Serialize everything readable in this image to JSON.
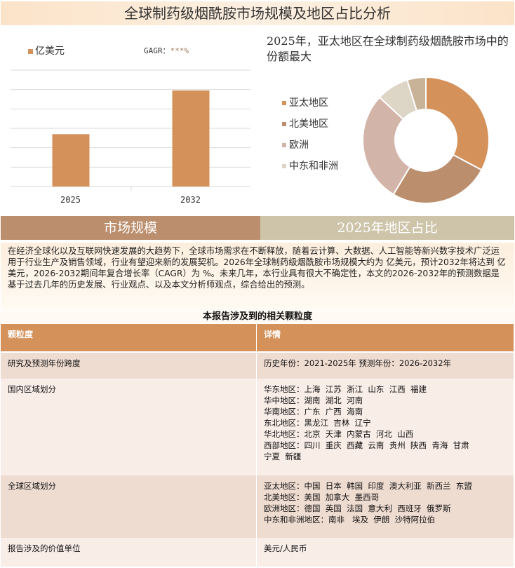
{
  "title": "全球制药级烟酰胺市场规模及地区占比分析",
  "bar_legend": "亿美元",
  "cagr_label": "GAGR：",
  "cagr_value": "***%",
  "pie_title": "2025年，亚太地区在全球制药级烟酰胺市场中的份额最大",
  "section_left": "市场规模",
  "section_right": "2025年地区占比",
  "paragraph": "在经济全球化以及互联网快速发展的大趋势下，全球市场需求在不断释放，随着云计算、大数据、人工智能等新兴数字技术广泛运用于行业生产及销售领域，行业有望迎来新的发展契机。2026年全球制药级烟酰胺市场规模大约为 亿美元，预计2032年将达到 亿美元，2026-2032期间年复合增长率（CAGR）为 %。未来几年，本行业具有很大不确定性，本文的2026-2032年的预测数据是基于过去几年的历史发展、行业观点、以及本文分析师观点，综合给出的预测。",
  "table": {
    "title": "本报告涉及到的相关颗粒度",
    "headers": [
      "颗粒度",
      "详情"
    ],
    "rows": [
      {
        "label": "研究及预测年份跨度",
        "lines": [
          "历史年份：2021-2025年 预测年份：2026-2032年"
        ]
      },
      {
        "label": "国内区域划分",
        "lines": [
          "华东地区：上海  江苏  浙江  山东  江西  福建",
          "华中地区：湖南  湖北  河南",
          "华南地区：广东  广西  海南",
          "东北地区：黑龙江  吉林  辽宁",
          "华北地区：北京  天津  内蒙古  河北  山西",
          "西部地区：四川  重庆  西藏  云南  贵州  陕西  青海  甘肃",
          "宁夏  新疆"
        ]
      },
      {
        "label": "全球区域划分",
        "lines": [
          "亚太地区：中国  日本  韩国  印度  澳大利亚  新西兰  东盟",
          "北美地区：美国  加拿大  墨西哥",
          "欧洲地区：德国  英国  法国  意大利  西班牙  俄罗斯",
          "中东和非洲地区：南非   埃及  伊朗  沙特阿拉伯"
        ]
      },
      {
        "label": "报告涉及的价值单位",
        "lines": [
          "美元/人民币"
        ]
      }
    ]
  },
  "colors": {
    "bar": "#d4915a",
    "section_left": "#bb8e6e",
    "section_right": "#cdc4a9",
    "table_header": "#d4915a",
    "row_dark": "#efdcd1",
    "row_light": "#f8ede7"
  },
  "chart_data": [
    {
      "type": "bar",
      "categories": [
        "2025",
        "2032"
      ],
      "values": [
        2.7,
        4.95
      ],
      "series": [
        {
          "name": "亿美元",
          "values": [
            2.7,
            4.95
          ]
        }
      ],
      "ylim": [
        0,
        6
      ],
      "grid": true,
      "legend": "top-left",
      "note_values_estimated": true
    },
    {
      "type": "pie",
      "variant": "donut",
      "labels": [
        "亚太地区",
        "北美地区",
        "欧洲",
        "中东和非洲",
        ""
      ],
      "values": [
        32.8,
        25.8,
        28.3,
        8.3,
        4.8
      ],
      "colors": [
        "#d4915a",
        "#bb8e6e",
        "#d3b4a8",
        "#ddd6c6",
        "#c8b398"
      ],
      "legend": "left"
    }
  ]
}
